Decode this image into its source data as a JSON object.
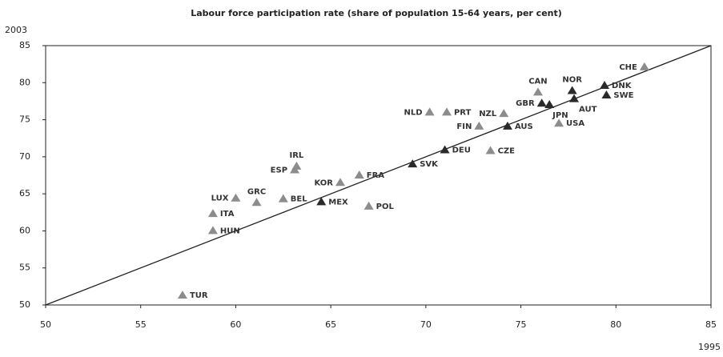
{
  "chart_data": {
    "type": "scatter",
    "title": "Labour force participation rate (share of population 15-64 years, per cent)",
    "y_label": "2003",
    "x_label": "1995",
    "labels": [
      "CHE",
      "DNK",
      "SWE",
      "NOR",
      "AUT",
      "CAN",
      "GBR",
      "JPN",
      "NZL",
      "PRT",
      "NLD",
      "FIN",
      "USA",
      "AUS",
      "DEU",
      "CZE",
      "SVK",
      "FRA",
      "KOR",
      "IRL",
      "ESP",
      "MEX",
      "POL",
      "BEL",
      "GRC",
      "LUX",
      "ITA",
      "HUN",
      "TUR"
    ],
    "x": [
      81.5,
      79.4,
      79.5,
      77.7,
      77.8,
      75.9,
      76.1,
      76.5,
      74.1,
      71.1,
      70.2,
      72.8,
      77.0,
      74.3,
      71.0,
      73.4,
      69.3,
      66.5,
      65.5,
      63.2,
      63.1,
      64.5,
      67.0,
      62.5,
      61.1,
      60.0,
      58.8,
      58.8,
      57.2
    ],
    "values": [
      82.1,
      79.6,
      78.3,
      78.9,
      77.8,
      78.7,
      77.2,
      77.0,
      75.8,
      76.0,
      76.0,
      74.1,
      74.5,
      74.1,
      70.9,
      70.8,
      69.0,
      67.5,
      66.5,
      68.7,
      68.2,
      63.9,
      63.3,
      64.3,
      63.8,
      64.4,
      62.3,
      60.0,
      51.3
    ],
    "colors": [
      "#8c8c8c",
      "#2a2a2a",
      "#2a2a2a",
      "#2a2a2a",
      "#2a2a2a",
      "#8c8c8c",
      "#2a2a2a",
      "#2a2a2a",
      "#8c8c8c",
      "#8c8c8c",
      "#8c8c8c",
      "#8c8c8c",
      "#8c8c8c",
      "#2a2a2a",
      "#2a2a2a",
      "#8c8c8c",
      "#2a2a2a",
      "#8c8c8c",
      "#8c8c8c",
      "#8c8c8c",
      "#8c8c8c",
      "#2a2a2a",
      "#8c8c8c",
      "#8c8c8c",
      "#8c8c8c",
      "#8c8c8c",
      "#8c8c8c",
      "#8c8c8c",
      "#8c8c8c"
    ],
    "xlim": [
      50,
      85
    ],
    "ylim": [
      50,
      85
    ],
    "xticks": [
      50,
      55,
      60,
      65,
      70,
      75,
      80,
      85
    ],
    "yticks": [
      50,
      55,
      60,
      65,
      70,
      75,
      80,
      85
    ],
    "diagonal": true
  }
}
